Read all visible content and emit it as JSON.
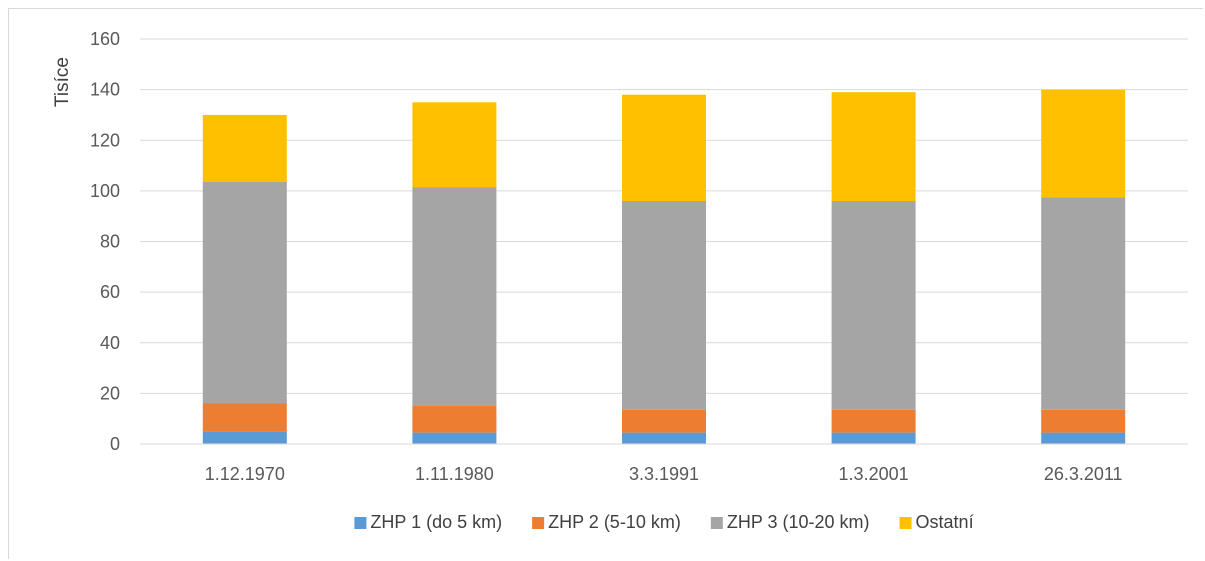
{
  "chart_data": {
    "type": "bar",
    "stacked": true,
    "ylabel": "Tisíce",
    "xlabel": "",
    "ylim": [
      0,
      160
    ],
    "yticks": [
      0,
      20,
      40,
      60,
      80,
      100,
      120,
      140,
      160
    ],
    "grid": true,
    "legend_position": "bottom",
    "categories": [
      "1.12.1970",
      "1.11.1980",
      "3.3.1991",
      "1.3.2001",
      "26.3.2011"
    ],
    "series": [
      {
        "name": "ZHP 1 (do 5 km)",
        "color": "#5b9bd5",
        "values": [
          5,
          4.5,
          4.5,
          4.5,
          4.5
        ]
      },
      {
        "name": "ZHP 2 (5-10 km)",
        "color": "#ed7d31",
        "values": [
          11,
          10.5,
          9,
          9,
          9
        ]
      },
      {
        "name": "ZHP 3 (10-20 km)",
        "color": "#a5a5a5",
        "values": [
          87.5,
          86.5,
          82.5,
          82.5,
          84
        ]
      },
      {
        "name": "Ostatní",
        "color": "#ffc000",
        "values": [
          26.5,
          33.5,
          42,
          43,
          42.5
        ]
      }
    ]
  }
}
